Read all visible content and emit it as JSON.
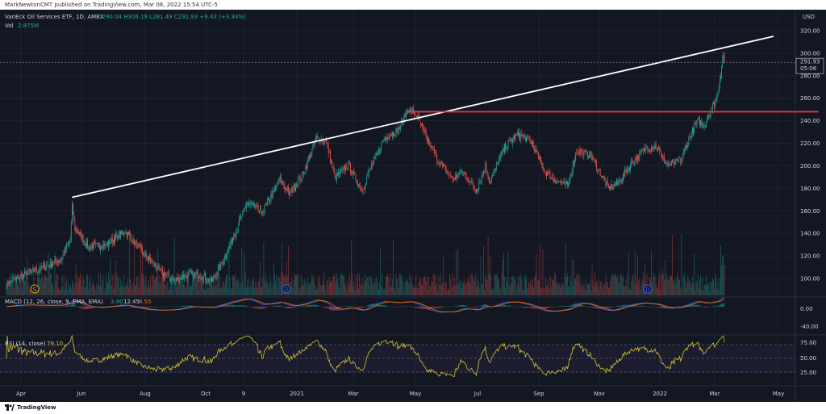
{
  "header": {
    "published": "MarkNewtonCMT published on TradingView.com, Mar 08, 2022 15:54 UTC-5"
  },
  "legend": {
    "symbol": "VanEck Oil Services ETF, 1D, AMEX",
    "ohlc": "O290.04 H306.19 L281.49 C291.93 +9.43 (+3.34%)",
    "vol_label": "Vol",
    "vol_value": "2.875M"
  },
  "price_axis": {
    "currency": "USD",
    "last_price": "291.93",
    "countdown": "05:06"
  },
  "macd": {
    "label": "MACD (12, 26, close, 9, EMA, EMA)",
    "hist": "3.90",
    "macd": "12.45",
    "signal": "8.55"
  },
  "rsi": {
    "label": "RSI (14, close)",
    "value": "79.10"
  },
  "footer": {
    "brand": "TradingView"
  },
  "colors": {
    "background": "#131722",
    "up": "#26a69a",
    "down": "#ef5350",
    "trendline": "#ffffff",
    "resistance": "#f23645",
    "rsi": "#d4c233",
    "macd_line": "#2962ff",
    "signal_line": "#ff6d00"
  },
  "chart_data": {
    "type": "candlestick",
    "y_ticks": [
      100,
      120,
      140,
      160,
      180,
      200,
      220,
      240,
      260,
      280,
      300,
      320
    ],
    "ylim": [
      88,
      330
    ],
    "macd_ticks": [
      "0.00",
      "-40.00"
    ],
    "rsi_ticks": [
      "75.00",
      "50.00",
      "25.00"
    ],
    "x_ticks": [
      "Apr",
      "Jun",
      "Aug",
      "Oct",
      "9",
      "2021",
      "Mar",
      "May",
      "Jul",
      "Sep",
      "Nov",
      "2022",
      "Mar",
      "May"
    ],
    "anchors": [
      [
        0,
        95
      ],
      [
        15,
        102
      ],
      [
        40,
        110
      ],
      [
        60,
        117
      ],
      [
        70,
        135
      ],
      [
        72,
        163
      ],
      [
        75,
        145
      ],
      [
        90,
        128
      ],
      [
        110,
        130
      ],
      [
        130,
        142
      ],
      [
        150,
        122
      ],
      [
        170,
        105
      ],
      [
        185,
        98
      ],
      [
        200,
        104
      ],
      [
        215,
        102
      ],
      [
        225,
        97
      ],
      [
        240,
        120
      ],
      [
        255,
        150
      ],
      [
        265,
        168
      ],
      [
        280,
        158
      ],
      [
        300,
        188
      ],
      [
        310,
        175
      ],
      [
        325,
        192
      ],
      [
        340,
        225
      ],
      [
        350,
        222
      ],
      [
        360,
        190
      ],
      [
        375,
        200
      ],
      [
        390,
        178
      ],
      [
        400,
        200
      ],
      [
        415,
        225
      ],
      [
        430,
        232
      ],
      [
        440,
        250
      ],
      [
        450,
        245
      ],
      [
        460,
        225
      ],
      [
        475,
        202
      ],
      [
        490,
        188
      ],
      [
        500,
        195
      ],
      [
        515,
        178
      ],
      [
        525,
        200
      ],
      [
        530,
        185
      ],
      [
        545,
        215
      ],
      [
        560,
        228
      ],
      [
        575,
        222
      ],
      [
        590,
        195
      ],
      [
        600,
        188
      ],
      [
        615,
        182
      ],
      [
        625,
        213
      ],
      [
        640,
        210
      ],
      [
        650,
        195
      ],
      [
        660,
        180
      ],
      [
        670,
        184
      ],
      [
        685,
        202
      ],
      [
        700,
        215
      ],
      [
        712,
        218
      ],
      [
        725,
        200
      ],
      [
        740,
        206
      ],
      [
        750,
        228
      ],
      [
        758,
        240
      ],
      [
        765,
        236
      ],
      [
        772,
        250
      ],
      [
        778,
        258
      ],
      [
        783,
        282
      ],
      [
        786,
        300
      ],
      [
        787,
        292
      ]
    ],
    "trendline": {
      "from": [
        72,
        172
      ],
      "to": [
        841,
        315
      ]
    },
    "resistance": {
      "from": [
        440,
        248
      ],
      "to": [
        890,
        248
      ]
    },
    "last_close": 291.93
  }
}
